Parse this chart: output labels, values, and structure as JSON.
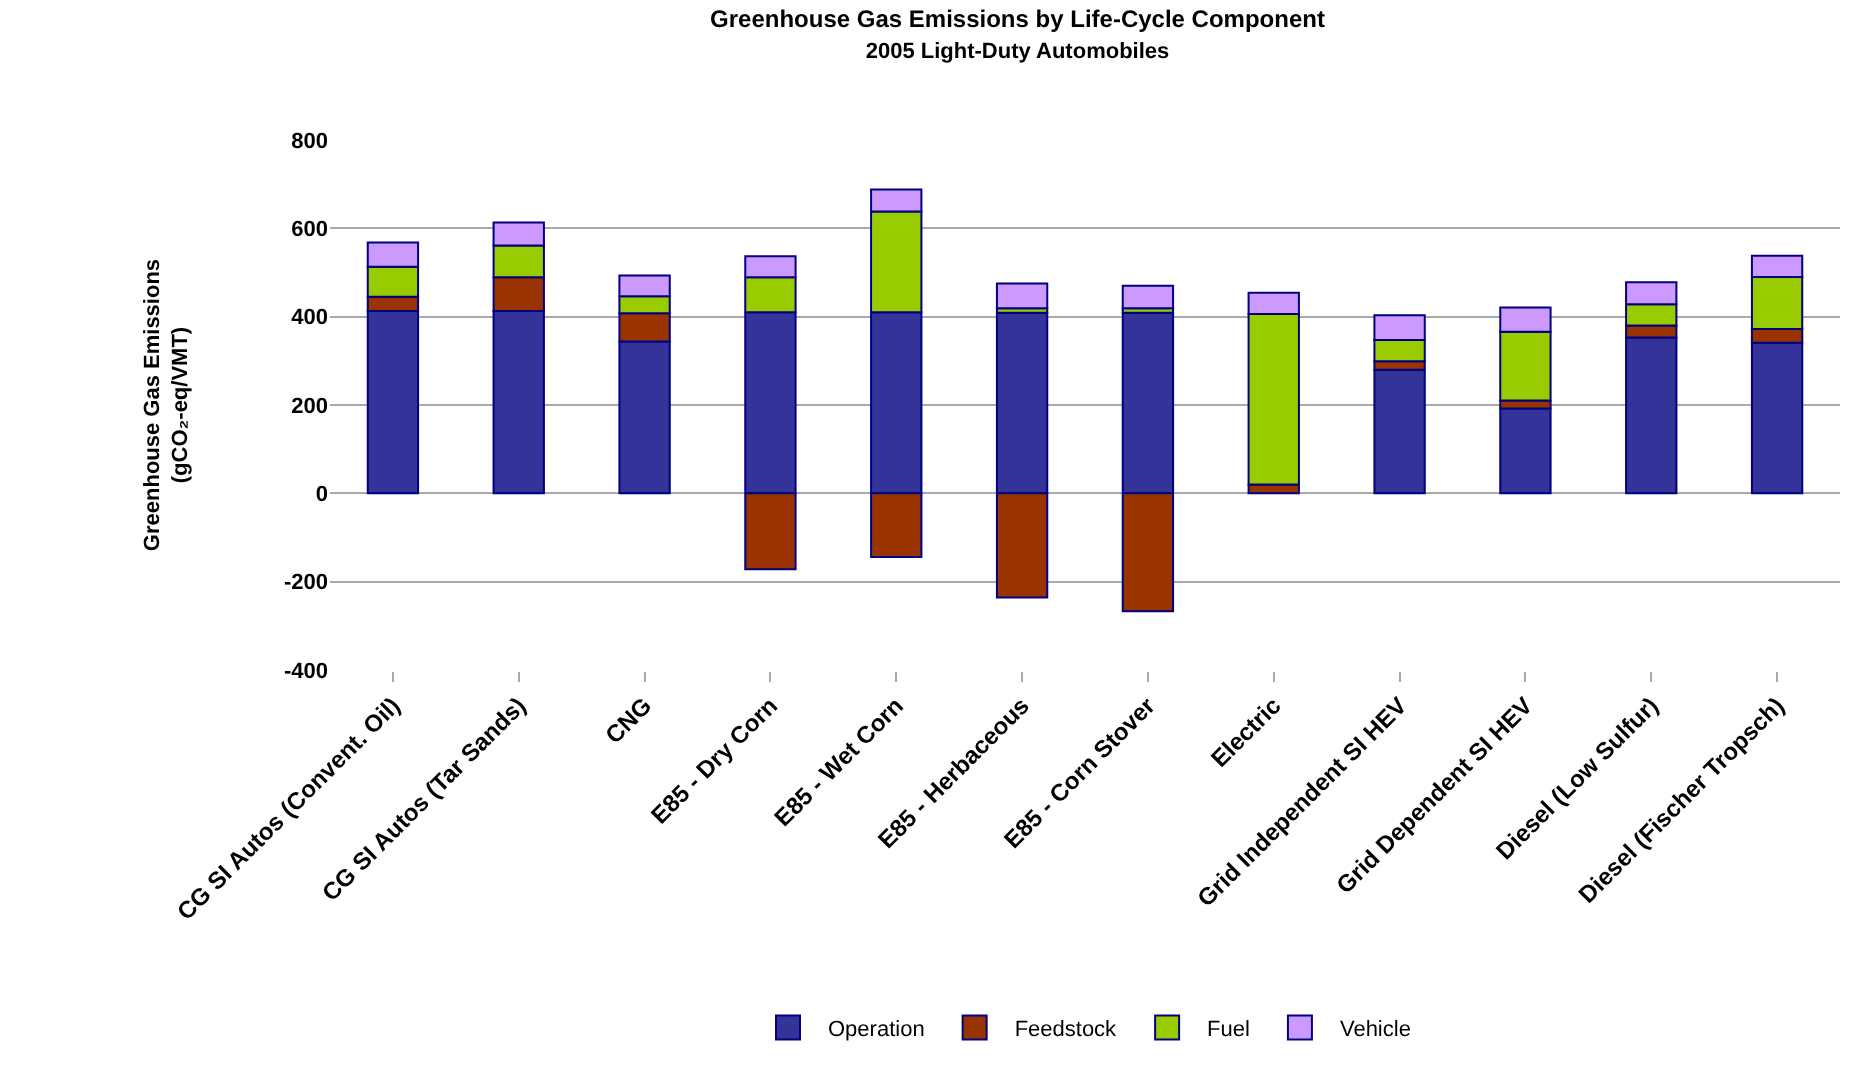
{
  "chart_data": {
    "type": "bar",
    "title": "Greenhouse Gas Emissions by Life-Cycle Component",
    "subtitle": "2005 Light-Duty Automobiles",
    "ylabel": "Greenhouse Gas Emissions\n(gCO₂-eq/VMT)",
    "categories": [
      "CG SI Autos (Convent. Oil)",
      "CG SI Autos (Tar Sands)",
      "CNG",
      "E85 - Dry Corn",
      "E85 - Wet Corn",
      "E85 - Herbaceous",
      "E85 - Corn Stover",
      "Electric",
      "Grid Independent SI HEV",
      "Grid Dependent SI HEV",
      "Diesel (Low Sulfur)",
      "Diesel (Fischer Tropsch)"
    ],
    "series": [
      {
        "name": "Operation",
        "color": "#333399",
        "values": [
          413,
          413,
          344,
          410,
          410,
          409,
          409,
          null,
          280,
          192,
          353,
          341
        ]
      },
      {
        "name": "Feedstock",
        "color": "#993300",
        "values": [
          32,
          76,
          64,
          -172,
          -144,
          -236,
          -267,
          20,
          19,
          18,
          27,
          31
        ]
      },
      {
        "name": "Fuel",
        "color": "#99cc00",
        "values": [
          68,
          72,
          38,
          79,
          228,
          10,
          10,
          386,
          48,
          156,
          48,
          118
        ]
      },
      {
        "name": "Vehicle",
        "color": "#cc99ff",
        "values": [
          55,
          52,
          47,
          48,
          50,
          56,
          51,
          48,
          56,
          55,
          50,
          48
        ]
      }
    ],
    "stacked": true,
    "ylim": [
      -400,
      800
    ],
    "yticks": [
      -400,
      -200,
      0,
      200,
      400,
      600,
      800
    ],
    "grid": "y",
    "legend": "bottom"
  }
}
